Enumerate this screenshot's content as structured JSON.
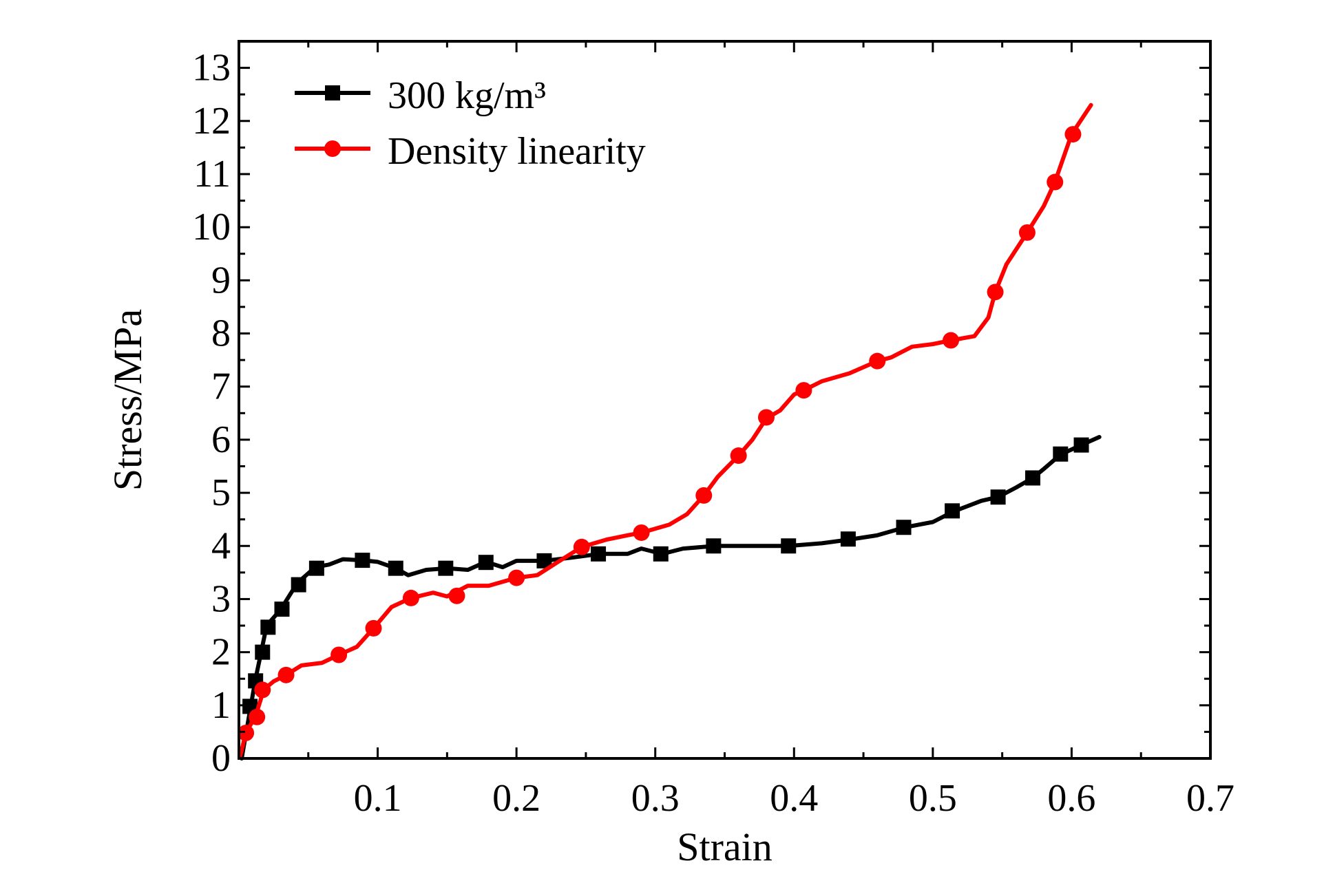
{
  "chart_data": {
    "type": "line",
    "xlabel": "Strain",
    "ylabel": "Stress/MPa",
    "xlim": [
      0,
      0.7
    ],
    "ylim": [
      0,
      13.5
    ],
    "x_ticks": [
      0.1,
      0.2,
      0.3,
      0.4,
      0.5,
      0.6,
      0.7
    ],
    "x_tick_labels": [
      "0.1",
      "0.2",
      "0.3",
      "0.4",
      "0.5",
      "0.6",
      "0.7"
    ],
    "y_ticks": [
      0,
      1,
      2,
      3,
      4,
      5,
      6,
      7,
      8,
      9,
      10,
      11,
      12,
      13
    ],
    "y_tick_labels": [
      "0",
      "1",
      "2",
      "3",
      "4",
      "5",
      "6",
      "7",
      "8",
      "9",
      "10",
      "11",
      "12",
      "13"
    ],
    "legend_position": "top-left",
    "grid": false,
    "series": [
      {
        "name": "300 kg/m³",
        "color": "#000000",
        "marker": "square",
        "line": [
          [
            0.002,
            0.0
          ],
          [
            0.008,
            0.9
          ],
          [
            0.012,
            1.5
          ],
          [
            0.016,
            2.0
          ],
          [
            0.02,
            2.5
          ],
          [
            0.03,
            2.8
          ],
          [
            0.042,
            3.3
          ],
          [
            0.055,
            3.6
          ],
          [
            0.065,
            3.65
          ],
          [
            0.075,
            3.75
          ],
          [
            0.089,
            3.73
          ],
          [
            0.1,
            3.7
          ],
          [
            0.113,
            3.58
          ],
          [
            0.122,
            3.45
          ],
          [
            0.135,
            3.55
          ],
          [
            0.15,
            3.58
          ],
          [
            0.165,
            3.55
          ],
          [
            0.178,
            3.7
          ],
          [
            0.19,
            3.6
          ],
          [
            0.2,
            3.72
          ],
          [
            0.22,
            3.72
          ],
          [
            0.24,
            3.78
          ],
          [
            0.26,
            3.85
          ],
          [
            0.28,
            3.85
          ],
          [
            0.29,
            3.95
          ],
          [
            0.305,
            3.85
          ],
          [
            0.32,
            3.95
          ],
          [
            0.343,
            4.0
          ],
          [
            0.37,
            4.0
          ],
          [
            0.396,
            4.0
          ],
          [
            0.42,
            4.05
          ],
          [
            0.44,
            4.12
          ],
          [
            0.46,
            4.2
          ],
          [
            0.48,
            4.35
          ],
          [
            0.5,
            4.45
          ],
          [
            0.515,
            4.65
          ],
          [
            0.535,
            4.85
          ],
          [
            0.547,
            4.92
          ],
          [
            0.56,
            5.1
          ],
          [
            0.572,
            5.28
          ],
          [
            0.58,
            5.45
          ],
          [
            0.592,
            5.72
          ],
          [
            0.607,
            5.9
          ],
          [
            0.62,
            6.05
          ]
        ],
        "markers": [
          [
            0.008,
            0.98
          ],
          [
            0.012,
            1.46
          ],
          [
            0.017,
            2.0
          ],
          [
            0.021,
            2.47
          ],
          [
            0.031,
            2.81
          ],
          [
            0.043,
            3.27
          ],
          [
            0.056,
            3.58
          ],
          [
            0.089,
            3.73
          ],
          [
            0.113,
            3.58
          ],
          [
            0.149,
            3.58
          ],
          [
            0.178,
            3.69
          ],
          [
            0.22,
            3.72
          ],
          [
            0.259,
            3.85
          ],
          [
            0.304,
            3.85
          ],
          [
            0.342,
            4.0
          ],
          [
            0.396,
            4.0
          ],
          [
            0.439,
            4.13
          ],
          [
            0.479,
            4.35
          ],
          [
            0.514,
            4.66
          ],
          [
            0.547,
            4.92
          ],
          [
            0.572,
            5.28
          ],
          [
            0.592,
            5.73
          ],
          [
            0.607,
            5.9
          ]
        ]
      },
      {
        "name": "Density linearity",
        "color": "#ff0000",
        "marker": "circle",
        "line": [
          [
            0.001,
            0.05
          ],
          [
            0.005,
            0.48
          ],
          [
            0.012,
            0.8
          ],
          [
            0.018,
            1.3
          ],
          [
            0.025,
            1.45
          ],
          [
            0.034,
            1.57
          ],
          [
            0.045,
            1.75
          ],
          [
            0.06,
            1.8
          ],
          [
            0.072,
            1.95
          ],
          [
            0.085,
            2.1
          ],
          [
            0.097,
            2.45
          ],
          [
            0.11,
            2.85
          ],
          [
            0.124,
            3.02
          ],
          [
            0.14,
            3.12
          ],
          [
            0.15,
            3.05
          ],
          [
            0.165,
            3.25
          ],
          [
            0.18,
            3.25
          ],
          [
            0.2,
            3.4
          ],
          [
            0.215,
            3.45
          ],
          [
            0.23,
            3.7
          ],
          [
            0.247,
            3.98
          ],
          [
            0.265,
            4.12
          ],
          [
            0.28,
            4.2
          ],
          [
            0.29,
            4.25
          ],
          [
            0.31,
            4.4
          ],
          [
            0.323,
            4.6
          ],
          [
            0.335,
            4.95
          ],
          [
            0.345,
            5.3
          ],
          [
            0.36,
            5.7
          ],
          [
            0.37,
            6.0
          ],
          [
            0.38,
            6.4
          ],
          [
            0.39,
            6.55
          ],
          [
            0.4,
            6.85
          ],
          [
            0.407,
            6.93
          ],
          [
            0.42,
            7.1
          ],
          [
            0.44,
            7.25
          ],
          [
            0.46,
            7.48
          ],
          [
            0.47,
            7.55
          ],
          [
            0.485,
            7.75
          ],
          [
            0.5,
            7.8
          ],
          [
            0.513,
            7.87
          ],
          [
            0.53,
            7.95
          ],
          [
            0.54,
            8.3
          ],
          [
            0.545,
            8.78
          ],
          [
            0.553,
            9.3
          ],
          [
            0.568,
            9.9
          ],
          [
            0.58,
            10.4
          ],
          [
            0.588,
            10.85
          ],
          [
            0.6,
            11.75
          ],
          [
            0.614,
            12.3
          ]
        ],
        "markers": [
          [
            0.005,
            0.48
          ],
          [
            0.013,
            0.78
          ],
          [
            0.017,
            1.29
          ],
          [
            0.034,
            1.57
          ],
          [
            0.072,
            1.95
          ],
          [
            0.097,
            2.45
          ],
          [
            0.124,
            3.02
          ],
          [
            0.157,
            3.06
          ],
          [
            0.2,
            3.4
          ],
          [
            0.247,
            3.98
          ],
          [
            0.29,
            4.25
          ],
          [
            0.335,
            4.95
          ],
          [
            0.36,
            5.7
          ],
          [
            0.38,
            6.42
          ],
          [
            0.407,
            6.93
          ],
          [
            0.46,
            7.48
          ],
          [
            0.513,
            7.87
          ],
          [
            0.545,
            8.78
          ],
          [
            0.568,
            9.9
          ],
          [
            0.588,
            10.85
          ],
          [
            0.601,
            11.75
          ]
        ]
      }
    ]
  }
}
